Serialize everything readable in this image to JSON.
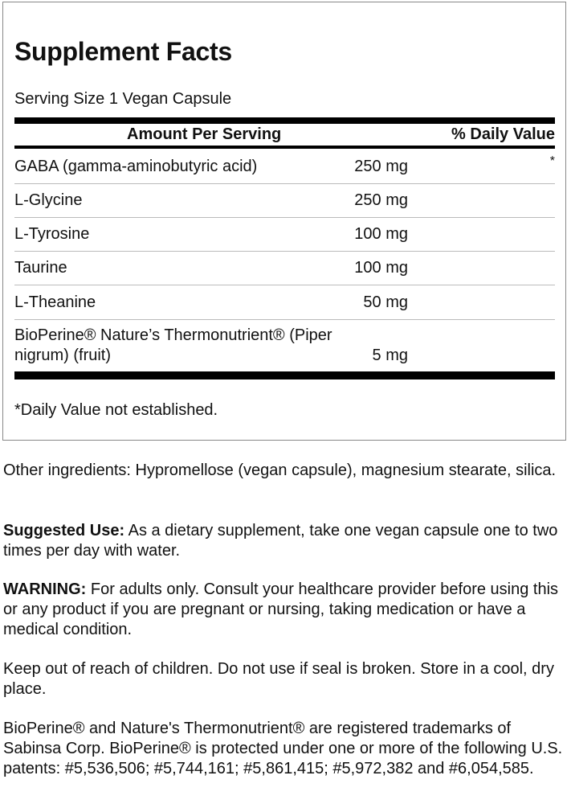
{
  "facts": {
    "title": "Supplement Facts",
    "serving_size": "Serving Size 1 Vegan Capsule",
    "header_amount": "Amount Per Serving",
    "header_dv": "% Daily Value",
    "rows": [
      {
        "name": "GABA (gamma-aminobutyric acid)",
        "amount": "250 mg",
        "dv": "*"
      },
      {
        "name": "L-Glycine",
        "amount": "250 mg",
        "dv": ""
      },
      {
        "name": "L-Tyrosine",
        "amount": "100 mg",
        "dv": ""
      },
      {
        "name": "Taurine",
        "amount": "100 mg",
        "dv": ""
      },
      {
        "name": "L-Theanine",
        "amount": "50 mg",
        "dv": ""
      },
      {
        "name_line1": "BioPerine® Nature’s Thermonutrient® (Piper",
        "name_line2": "nigrum) (fruit)",
        "amount": "5 mg"
      }
    ],
    "footnote": "*Daily Value not established."
  },
  "info": {
    "other_ingredients": "Other ingredients: Hypromellose (vegan capsule), magnesium stearate, silica.",
    "suggested_use_label": "Suggested Use:",
    "suggested_use_text": " As a dietary supplement, take one vegan capsule one to two times per day with water.",
    "warning_label": "WARNING:",
    "warning_text": " For adults only. Consult your healthcare provider before using this or any product if you are pregnant or nursing, taking medication or have a medical condition.",
    "storage": "Keep out of reach of children. Do not use if seal is broken. Store in a cool, dry place.",
    "trademarks": "BioPerine® and Nature's Thermonutrient® are registered trademarks of Sabinsa Corp. BioPerine® is protected under one or more of the following U.S. patents: #5,536,506; #5,744,161; #5,861,415; #5,972,382 and #6,054,585."
  }
}
